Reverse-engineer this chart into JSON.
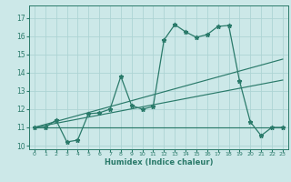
{
  "xlabel": "Humidex (Indice chaleur)",
  "bg_color": "#cce8e8",
  "grid_color": "#add4d4",
  "line_color": "#2a7a6a",
  "xlim": [
    -0.5,
    23.5
  ],
  "ylim": [
    9.8,
    17.7
  ],
  "yticks": [
    10,
    11,
    12,
    13,
    14,
    15,
    16,
    17
  ],
  "xticks": [
    0,
    1,
    2,
    3,
    4,
    5,
    6,
    7,
    8,
    9,
    10,
    11,
    12,
    13,
    14,
    15,
    16,
    17,
    18,
    19,
    20,
    21,
    22,
    23
  ],
  "main_x": [
    0,
    1,
    2,
    3,
    4,
    5,
    6,
    7,
    8,
    9,
    10,
    11,
    12,
    13,
    14,
    15,
    16,
    17,
    18,
    19,
    20,
    21,
    22,
    23
  ],
  "main_y": [
    11.0,
    11.0,
    11.4,
    10.2,
    10.3,
    11.75,
    11.8,
    12.0,
    13.8,
    12.2,
    12.0,
    12.15,
    15.8,
    16.65,
    16.25,
    15.95,
    16.1,
    16.55,
    16.6,
    13.55,
    11.3,
    10.55,
    11.0,
    11.0
  ],
  "flat_line_y": 11.0,
  "diag1_end_y": 14.75,
  "diag2_end_y": 13.6,
  "diag_start_x": 0,
  "diag_end_x": 23
}
